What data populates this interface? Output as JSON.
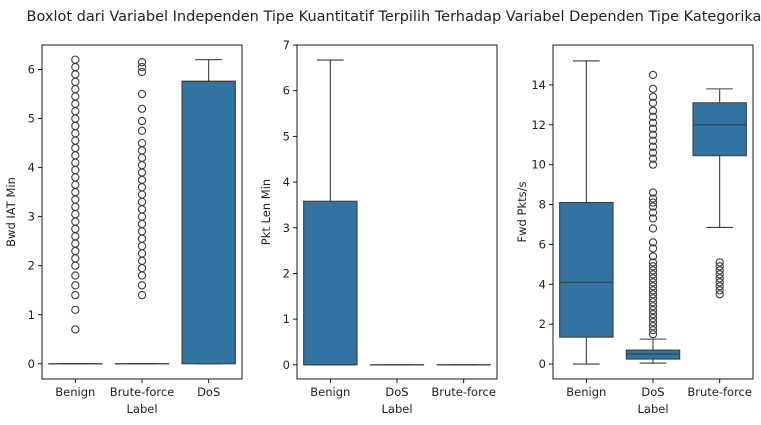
{
  "chart_data": {
    "title": "Boxlot dari Variabel Independen Tipe Kuantitatif Terpilih Terhadap Variabel Dependen Tipe Kategorikal",
    "colors": {
      "box": "#3274a1",
      "line": "#3d3d3d",
      "background": "#ffffff"
    },
    "subplots": [
      {
        "type": "box",
        "xlabel": "Label",
        "ylabel": "Bwd IAT Min",
        "ylim": [
          -0.31,
          6.5
        ],
        "yticks": [
          0,
          1,
          2,
          3,
          4,
          5,
          6
        ],
        "categories": [
          "Benign",
          "Brute-force",
          "DoS"
        ],
        "boxes": [
          {
            "category": "Benign",
            "whislo": 0,
            "q1": 0,
            "med": 0,
            "q3": 0,
            "whishi": 0,
            "fliers": [
              0.7,
              1.1,
              1.4,
              1.6,
              1.8,
              2.0,
              2.15,
              2.3,
              2.45,
              2.6,
              2.75,
              2.9,
              3.05,
              3.2,
              3.35,
              3.5,
              3.65,
              3.8,
              3.95,
              4.1,
              4.25,
              4.4,
              4.55,
              4.7,
              4.85,
              5.0,
              5.15,
              5.3,
              5.45,
              5.6,
              5.75,
              5.9,
              6.05,
              6.2
            ]
          },
          {
            "category": "Brute-force",
            "whislo": 0,
            "q1": 0,
            "med": 0,
            "q3": 0,
            "whishi": 0,
            "fliers": [
              1.4,
              1.6,
              1.8,
              1.95,
              2.1,
              2.25,
              2.4,
              2.55,
              2.7,
              2.85,
              3.0,
              3.15,
              3.3,
              3.45,
              3.6,
              3.75,
              3.9,
              4.05,
              4.2,
              4.35,
              4.5,
              4.75,
              4.95,
              5.2,
              5.5,
              5.95,
              6.05,
              6.15
            ]
          },
          {
            "category": "DoS",
            "whislo": 0,
            "q1": 0,
            "med": 5.76,
            "q3": 5.76,
            "whishi": 6.2,
            "fliers": []
          }
        ]
      },
      {
        "type": "box",
        "xlabel": "Label",
        "ylabel": "Pkt Len Min",
        "ylim": [
          -0.31,
          7
        ],
        "yticks": [
          0,
          1,
          2,
          3,
          4,
          5,
          6,
          7
        ],
        "categories": [
          "Benign",
          "DoS",
          "Brute-force"
        ],
        "boxes": [
          {
            "category": "Benign",
            "whislo": 0,
            "q1": 0,
            "med": 0,
            "q3": 3.58,
            "whishi": 6.67,
            "fliers": []
          },
          {
            "category": "DoS",
            "whislo": 0,
            "q1": 0,
            "med": 0,
            "q3": 0,
            "whishi": 0,
            "fliers": []
          },
          {
            "category": "Brute-force",
            "whislo": 0,
            "q1": 0,
            "med": 0,
            "q3": 0,
            "whishi": 0,
            "fliers": []
          }
        ]
      },
      {
        "type": "box",
        "xlabel": "Label",
        "ylabel": "Fwd Pkts/s",
        "ylim": [
          -0.75,
          16
        ],
        "yticks": [
          0,
          2,
          4,
          6,
          8,
          10,
          12,
          14
        ],
        "categories": [
          "Benign",
          "DoS",
          "Brute-force"
        ],
        "boxes": [
          {
            "category": "Benign",
            "whislo": 0,
            "q1": 1.35,
            "med": 4.1,
            "q3": 8.1,
            "whishi": 15.2,
            "fliers": []
          },
          {
            "category": "DoS",
            "whislo": 0.05,
            "q1": 0.25,
            "med": 0.5,
            "q3": 0.7,
            "whishi": 1.25,
            "fliers": [
              1.5,
              1.7,
              1.9,
              2.1,
              2.3,
              2.5,
              2.7,
              2.9,
              3.1,
              3.3,
              3.5,
              3.7,
              3.9,
              4.1,
              4.3,
              4.5,
              4.7,
              4.9,
              5.1,
              5.4,
              5.8,
              6.1,
              6.8,
              7.3,
              7.6,
              7.9,
              8.1,
              8.3,
              8.6,
              10.0,
              10.3,
              10.6,
              10.9,
              11.2,
              11.5,
              11.8,
              12.1,
              12.4,
              12.7,
              13.1,
              13.4,
              13.8,
              14.5
            ]
          },
          {
            "category": "Brute-force",
            "whislo": 6.85,
            "q1": 10.45,
            "med": 12.0,
            "q3": 13.1,
            "whishi": 13.8,
            "fliers": [
              3.5,
              3.7,
              3.9,
              4.1,
              4.3,
              4.5,
              4.7,
              4.9,
              5.1
            ]
          }
        ]
      }
    ]
  }
}
